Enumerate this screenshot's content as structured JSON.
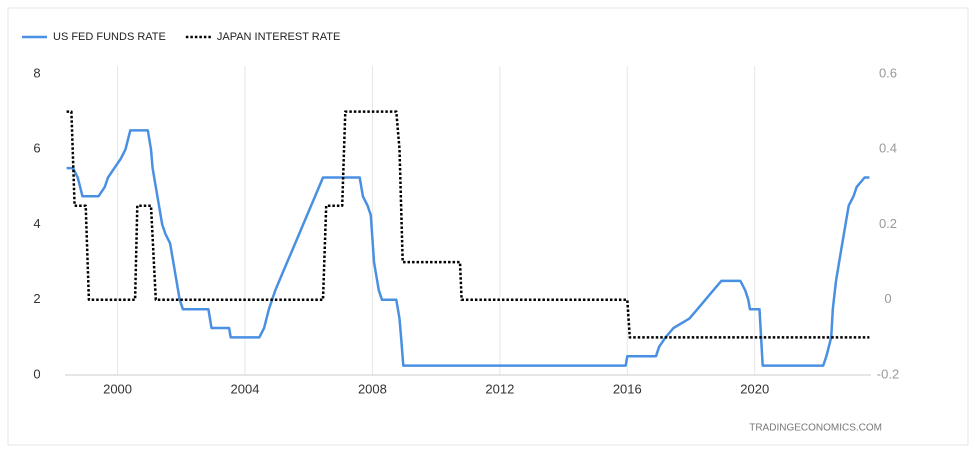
{
  "chart_data": {
    "type": "line",
    "xlim": [
      1998.35,
      2023.65
    ],
    "xticks": [
      2000,
      2004,
      2008,
      2012,
      2016,
      2020
    ],
    "ylim": [
      0,
      8
    ],
    "yticks": [
      0,
      2,
      4,
      6,
      8
    ],
    "y2lim": [
      -0.2,
      0.6
    ],
    "y2ticks": [
      -0.2,
      0,
      0.2,
      0.4,
      0.6
    ],
    "grid": "x",
    "legend": "top-left",
    "source": "TRADINGECONOMICS.COM",
    "series": [
      {
        "name": "US FED FUNDS RATE",
        "color": "#4a90e2",
        "style": "solid",
        "axis": "y",
        "x": [
          1998.4,
          1998.6,
          1998.75,
          1998.9,
          1999.4,
          1999.6,
          1999.7,
          1999.9,
          2000.1,
          2000.25,
          2000.4,
          2000.95,
          2001.05,
          2001.1,
          2001.2,
          2001.3,
          2001.4,
          2001.5,
          2001.65,
          2001.75,
          2001.85,
          2001.95,
          2002.05,
          2002.85,
          2002.95,
          2003.5,
          2003.55,
          2004.45,
          2004.6,
          2004.75,
          2004.95,
          2005.2,
          2005.45,
          2005.7,
          2005.95,
          2006.2,
          2006.45,
          2007.6,
          2007.7,
          2007.85,
          2007.95,
          2008.05,
          2008.2,
          2008.3,
          2008.75,
          2008.85,
          2008.9,
          2008.97,
          2015.95,
          2016.0,
          2016.9,
          2017.0,
          2017.2,
          2017.45,
          2017.95,
          2018.2,
          2018.45,
          2018.7,
          2018.95,
          2019.55,
          2019.7,
          2019.8,
          2019.85,
          2020.15,
          2020.2,
          2020.25,
          2022.15,
          2022.25,
          2022.4,
          2022.45,
          2022.55,
          2022.7,
          2022.85,
          2022.95,
          2023.1,
          2023.2,
          2023.45,
          2023.6
        ],
        "values": [
          5.5,
          5.5,
          5.25,
          4.75,
          4.75,
          5.0,
          5.25,
          5.5,
          5.75,
          6.0,
          6.5,
          6.5,
          6.0,
          5.5,
          5.0,
          4.5,
          4.0,
          3.75,
          3.5,
          3.0,
          2.5,
          2.0,
          1.75,
          1.75,
          1.25,
          1.25,
          1.0,
          1.0,
          1.25,
          1.75,
          2.25,
          2.75,
          3.25,
          3.75,
          4.25,
          4.75,
          5.25,
          5.25,
          4.75,
          4.5,
          4.25,
          3.0,
          2.25,
          2.0,
          2.0,
          1.5,
          1.0,
          0.25,
          0.25,
          0.5,
          0.5,
          0.75,
          1.0,
          1.25,
          1.5,
          1.75,
          2.0,
          2.25,
          2.5,
          2.5,
          2.25,
          2.0,
          1.75,
          1.75,
          1.0,
          0.25,
          0.25,
          0.5,
          1.0,
          1.75,
          2.5,
          3.25,
          4.0,
          4.5,
          4.75,
          5.0,
          5.25,
          5.25
        ]
      },
      {
        "name": "JAPAN INTEREST RATE",
        "color": "#000000",
        "style": "dotted",
        "axis": "y2",
        "x": [
          1998.4,
          1998.55,
          1998.65,
          1999.0,
          1999.1,
          2000.55,
          2000.62,
          2001.05,
          2001.2,
          2006.45,
          2006.55,
          2007.05,
          2007.15,
          2008.75,
          2008.85,
          2008.95,
          2010.75,
          2010.8,
          2016.0,
          2016.08,
          2023.6
        ],
        "values": [
          0.5,
          0.5,
          0.25,
          0.25,
          0,
          0,
          0.25,
          0.25,
          0,
          0,
          0.25,
          0.25,
          0.5,
          0.5,
          0.4,
          0.1,
          0.1,
          0,
          0,
          -0.1,
          -0.1
        ]
      }
    ]
  }
}
